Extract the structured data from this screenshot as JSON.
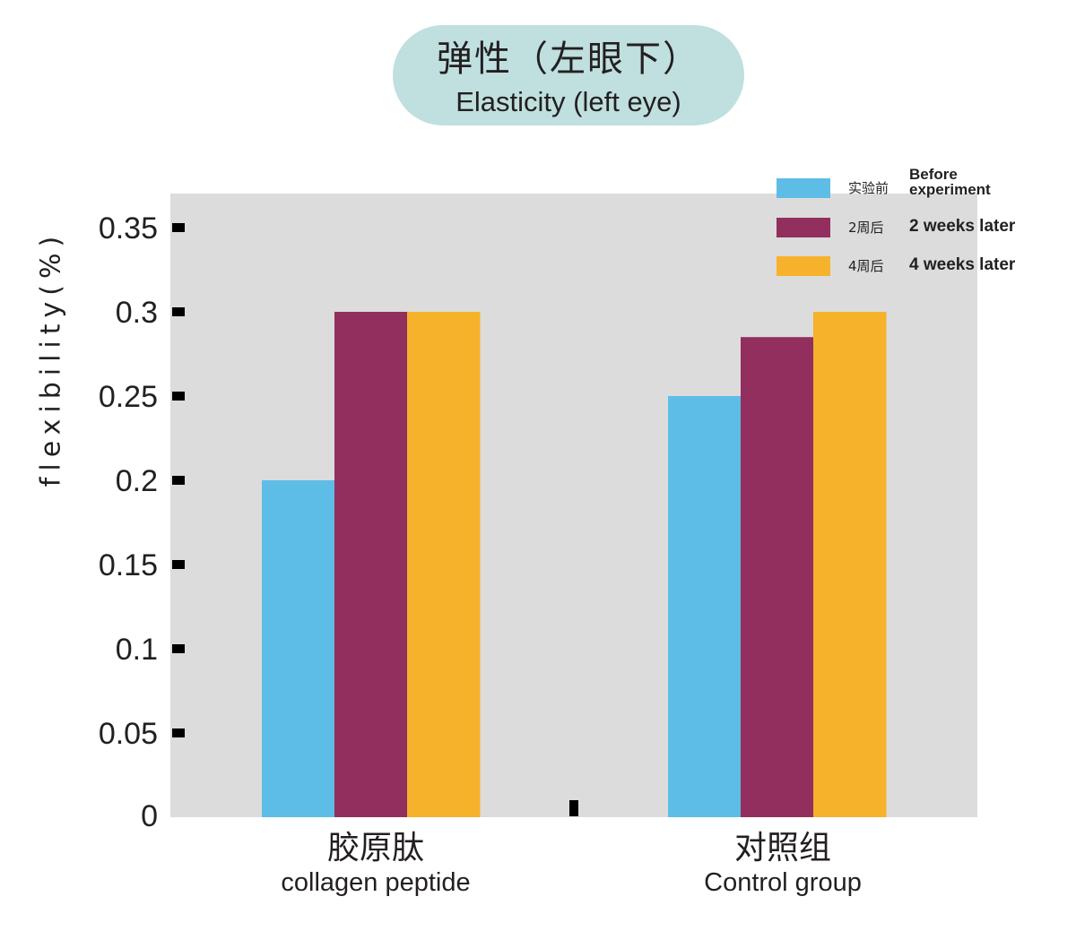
{
  "title": {
    "cn": "弹性（左眼下）",
    "en": "Elasticity (left eye)"
  },
  "colors": {
    "plot_bg": "#dcdcdc",
    "title_bg": "#c0dfdf",
    "before": "#5dbde6",
    "two_weeks": "#922f5e",
    "four_weeks": "#f7b22b"
  },
  "chart_data": {
    "type": "bar",
    "title": "弹性（左眼下） Elasticity (left eye)",
    "ylabel": "flexibility(%)",
    "xlabel": "",
    "ylim": [
      0,
      0.37
    ],
    "grid": false,
    "legend_position": "top-right",
    "yticks": [
      "0",
      "0.05",
      "0.1",
      "0.15",
      "0.2",
      "0.25",
      "0.3",
      "0.35"
    ],
    "categories": [
      {
        "cn": "胶原肽",
        "en": "collagen peptide"
      },
      {
        "cn": "对照组",
        "en": "Control group"
      }
    ],
    "series": [
      {
        "name": "实验前 Before experiment",
        "name_cn": "实验前",
        "name_en": "Before experiment",
        "color": "#5dbde6",
        "values": [
          0.2,
          0.25
        ]
      },
      {
        "name": "2周后 2 weeks later",
        "name_cn": "2周后",
        "name_en": "2 weeks later",
        "color": "#922f5e",
        "values": [
          0.3,
          0.285
        ]
      },
      {
        "name": "4周后 4 weeks later",
        "name_cn": "4周后",
        "name_en": "4 weeks later",
        "color": "#f7b22b",
        "values": [
          0.3,
          0.3
        ]
      }
    ]
  }
}
